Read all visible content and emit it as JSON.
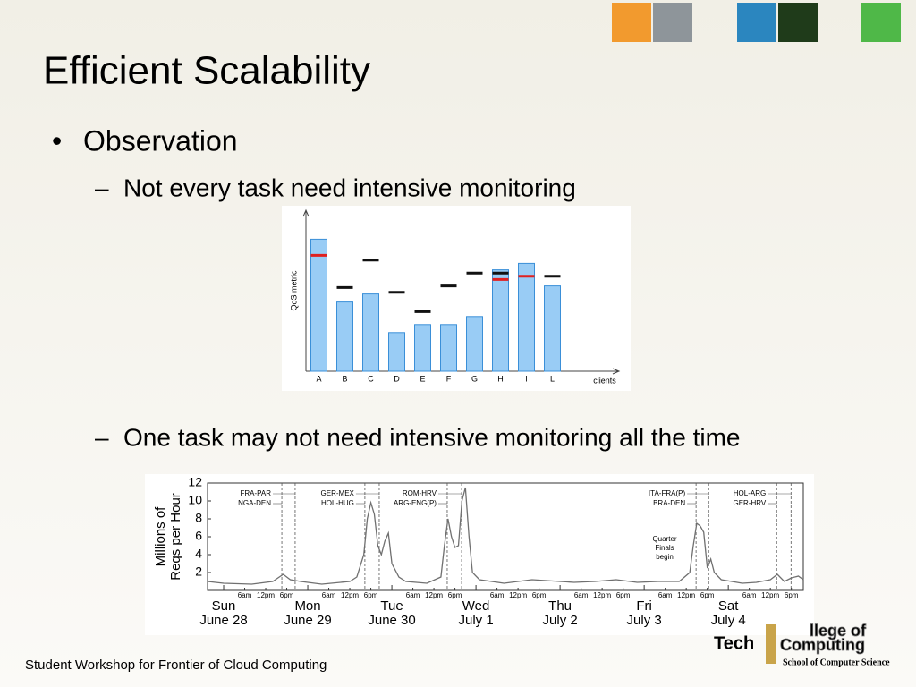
{
  "slide": {
    "title": "Efficient Scalability",
    "bullet": "Observation",
    "subbullets": [
      "Not every task need intensive monitoring",
      "One task may not need intensive monitoring all the time"
    ],
    "footer": "Student Workshop for Frontier of Cloud Computing",
    "logo": [
      "Tech",
      "llege of",
      "Computing",
      "School of Computer Science"
    ]
  },
  "chart_data": [
    {
      "type": "bar",
      "ylabel": "QoS metric",
      "xlabel": "clients",
      "categories": [
        "A",
        "B",
        "C",
        "D",
        "E",
        "F",
        "G",
        "H",
        "I",
        "L"
      ],
      "ylim": [
        0,
        100
      ],
      "series": [
        {
          "style": "bar",
          "color": "#99ccf5",
          "values": [
            82,
            43,
            48,
            24,
            29,
            29,
            34,
            63,
            67,
            53
          ]
        },
        {
          "style": "dash",
          "color": "#e02020",
          "values": [
            72,
            null,
            null,
            null,
            null,
            null,
            null,
            57,
            59,
            null
          ]
        },
        {
          "style": "dash",
          "color": "#111111",
          "values": [
            null,
            52,
            69,
            49,
            37,
            53,
            61,
            61,
            null,
            59
          ]
        }
      ]
    },
    {
      "type": "line",
      "ylabel": [
        "Millions of",
        "Reqs per Hour"
      ],
      "ylim": [
        0,
        12
      ],
      "yticks": [
        2,
        4,
        6,
        8,
        10,
        12
      ],
      "xlim": [
        -4.6,
        165.4
      ],
      "xticks": [
        {
          "value": 6,
          "label": "6am"
        },
        {
          "value": 12,
          "label": "12pm"
        },
        {
          "value": 18,
          "label": "6pm"
        },
        {
          "value": 30,
          "label": "6am"
        },
        {
          "value": 36,
          "label": "12pm"
        },
        {
          "value": 42,
          "label": "6pm"
        },
        {
          "value": 54,
          "label": "6am"
        },
        {
          "value": 60,
          "label": "12pm"
        },
        {
          "value": 66,
          "label": "6pm"
        },
        {
          "value": 78,
          "label": "6am"
        },
        {
          "value": 84,
          "label": "12pm"
        },
        {
          "value": 90,
          "label": "6pm"
        },
        {
          "value": 102,
          "label": "6am"
        },
        {
          "value": 108,
          "label": "12pm"
        },
        {
          "value": 114,
          "label": "6pm"
        },
        {
          "value": 126,
          "label": "6am"
        },
        {
          "value": 132,
          "label": "12pm"
        },
        {
          "value": 138,
          "label": "6pm"
        },
        {
          "value": 150,
          "label": "6am"
        },
        {
          "value": 156,
          "label": "12pm"
        },
        {
          "value": 162,
          "label": "6pm"
        }
      ],
      "day_ticks": [
        {
          "value": 0,
          "label": "Sun",
          "date": "June 28"
        },
        {
          "value": 24,
          "label": "Mon",
          "date": "June 29"
        },
        {
          "value": 48,
          "label": "Tue",
          "date": "June 30"
        },
        {
          "value": 72,
          "label": "Wed",
          "date": "July 1"
        },
        {
          "value": 96,
          "label": "Thu",
          "date": "July 2"
        },
        {
          "value": 120,
          "label": "Fri",
          "date": "July 3"
        },
        {
          "value": 144,
          "label": "Sat",
          "date": "July 4"
        }
      ],
      "matches": [
        {
          "labels": [
            "FRA-PAR",
            "NGA-DEN"
          ],
          "x": [
            16.6,
            20.4
          ]
        },
        {
          "labels": [
            "GER-MEX",
            "HOL-HUG"
          ],
          "x": [
            40.3,
            44.4
          ]
        },
        {
          "labels": [
            "ROM-HRV",
            "ARG-ENG(P)"
          ],
          "x": [
            63.8,
            67.9
          ]
        },
        {
          "labels": [
            "ITA-FRA(P)",
            "BRA-DEN"
          ],
          "x": [
            134.8,
            138.4
          ]
        },
        {
          "labels": [
            "HOL-ARG",
            "GER-HRV"
          ],
          "x": [
            157.8,
            161.9
          ]
        }
      ],
      "note": [
        "Quarter",
        "Finals",
        "begin"
      ],
      "color": "#707070",
      "x": [
        -4.6,
        0,
        8,
        14,
        17,
        19,
        22,
        28,
        36,
        38,
        40,
        41,
        42,
        43,
        44,
        45,
        46,
        47,
        48,
        50,
        52,
        58,
        62,
        63,
        64,
        65,
        66,
        67,
        68,
        69,
        70,
        71,
        73,
        80,
        88,
        92,
        100,
        106,
        112,
        118,
        124,
        130,
        133,
        134,
        135,
        136,
        137,
        138,
        139,
        140,
        142,
        148,
        152,
        156,
        158,
        160,
        162,
        164,
        165.4
      ],
      "values": [
        1.0,
        0.8,
        0.7,
        1.0,
        1.8,
        1.2,
        1.0,
        0.7,
        1.0,
        1.5,
        4,
        8,
        9.8,
        8.5,
        5,
        4,
        5.5,
        6.4,
        3,
        1.5,
        1.0,
        0.8,
        1.5,
        5,
        8,
        6,
        4.8,
        5,
        10,
        11.5,
        6,
        2,
        1.2,
        0.8,
        1.2,
        1.1,
        0.9,
        1.0,
        1.2,
        0.9,
        1.0,
        1.0,
        2,
        5,
        7.5,
        7.2,
        6.5,
        2.5,
        3.5,
        2,
        1.2,
        0.8,
        0.9,
        1.2,
        1.8,
        1.0,
        1.4,
        1.6,
        1.2
      ]
    }
  ]
}
